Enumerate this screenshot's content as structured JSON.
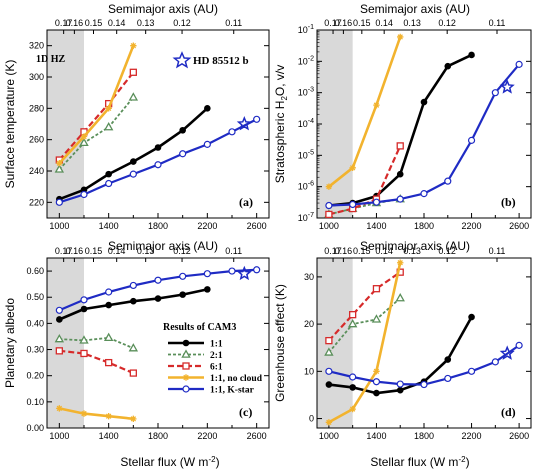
{
  "figure": {
    "top_axis_label": "Semimajor axis (AU)",
    "bottom_axis_label_main": "Stellar flux (W m",
    "bottom_axis_label_sup": "-2",
    "bottom_axis_label_end": ")"
  },
  "colors": {
    "r1": "#000000",
    "r2": "#5a8f5a",
    "r6": "#d62a2a",
    "nocloud": "#f2b32e",
    "kstar": "#1f2bc4",
    "hz": "#d9d9d9"
  },
  "legend": {
    "title": "Results of CAM3",
    "entries": [
      {
        "key": "r1",
        "label": "1:1"
      },
      {
        "key": "r2",
        "label": "2:1"
      },
      {
        "key": "r6",
        "label": "6:1"
      },
      {
        "key": "nocloud",
        "label": "1:1, no cloud"
      },
      {
        "key": "kstar",
        "label": "1:1, K-star"
      }
    ]
  },
  "annotations": {
    "hz_label": "1D HZ",
    "planet_label": "HD 85512 b"
  },
  "chart_data": [
    {
      "type": "line",
      "panel_label": "(a)",
      "ylabel": "Surface temperature (K)",
      "xlim": [
        900,
        2700
      ],
      "ylim": [
        210,
        330
      ],
      "yscale": "linear",
      "yticks": [
        220,
        240,
        260,
        280,
        300,
        320
      ],
      "ytick_labels": [
        "220",
        "240",
        "260",
        "280",
        "300",
        "320"
      ],
      "xticks": [
        1000,
        1400,
        1800,
        2200,
        2600
      ],
      "top_ticks": [
        {
          "label": "0.17",
          "x": 1035
        },
        {
          "label": "0.16",
          "x": 1122
        },
        {
          "label": "0.15",
          "x": 1277
        },
        {
          "label": "0.14",
          "x": 1465
        },
        {
          "label": "0.13",
          "x": 1700
        },
        {
          "label": "0.12",
          "x": 1995
        },
        {
          "label": "0.11",
          "x": 2414
        }
      ],
      "hz": [
        1000,
        1200
      ],
      "star": {
        "x": 2500,
        "y": 270
      },
      "series": [
        {
          "key": "r1",
          "x": [
            1000,
            1200,
            1400,
            1600,
            1800,
            2000,
            2200
          ],
          "y": [
            222,
            228,
            238,
            246,
            255,
            266,
            280
          ]
        },
        {
          "key": "r2",
          "x": [
            1000,
            1200,
            1400,
            1600
          ],
          "y": [
            241,
            258,
            268,
            287
          ]
        },
        {
          "key": "r6",
          "x": [
            1000,
            1200,
            1400,
            1600
          ],
          "y": [
            247,
            265,
            283,
            303
          ]
        },
        {
          "key": "nocloud",
          "x": [
            1000,
            1200,
            1400,
            1600
          ],
          "y": [
            245,
            262,
            280,
            320
          ]
        },
        {
          "key": "kstar",
          "x": [
            1000,
            1200,
            1400,
            1600,
            1800,
            2000,
            2200,
            2400,
            2600
          ],
          "y": [
            220,
            225,
            232,
            238,
            244,
            251,
            257,
            265,
            273
          ]
        }
      ]
    },
    {
      "type": "line",
      "panel_label": "(b)",
      "ylabel": "Stratospheric H2O, v/v",
      "xlim": [
        900,
        2700
      ],
      "ylim": [
        1e-07,
        0.1
      ],
      "yscale": "log",
      "yticks": [
        1e-07,
        1e-06,
        1e-05,
        0.0001,
        0.001,
        0.01,
        0.1
      ],
      "ytick_labels": [
        "10^-7",
        "10^-6",
        "10^-5",
        "10^-4",
        "10^-3",
        "10^-2",
        "10^-1"
      ],
      "xticks": [
        1000,
        1400,
        1800,
        2200,
        2600
      ],
      "top_ticks": [
        {
          "label": "0.17",
          "x": 1035
        },
        {
          "label": "0.16",
          "x": 1122
        },
        {
          "label": "0.15",
          "x": 1277
        },
        {
          "label": "0.14",
          "x": 1465
        },
        {
          "label": "0.13",
          "x": 1700
        },
        {
          "label": "0.12",
          "x": 1995
        },
        {
          "label": "0.11",
          "x": 2414
        }
      ],
      "hz": [
        1000,
        1200
      ],
      "star": {
        "x": 2500,
        "y": 0.0015
      },
      "series": [
        {
          "key": "r1",
          "x": [
            1000,
            1200,
            1400,
            1600,
            1800,
            2000,
            2200
          ],
          "y": [
            2.5e-07,
            3e-07,
            5e-07,
            2.5e-06,
            0.0005,
            0.007,
            0.016
          ]
        },
        {
          "key": "r2",
          "x": [
            1000,
            1200,
            1400,
            1600
          ],
          "y": [
            1.3e-07,
            2e-07,
            3e-07,
            4e-07
          ]
        },
        {
          "key": "r6",
          "x": [
            1000,
            1200,
            1400,
            1600
          ],
          "y": [
            1.3e-07,
            2e-07,
            4e-07,
            2e-05
          ]
        },
        {
          "key": "nocloud",
          "x": [
            1000,
            1200,
            1400,
            1600
          ],
          "y": [
            1e-06,
            4e-06,
            0.0004,
            0.06
          ]
        },
        {
          "key": "kstar",
          "x": [
            1000,
            1200,
            1400,
            1600,
            1800,
            2000,
            2200,
            2400,
            2600
          ],
          "y": [
            2.5e-07,
            2.7e-07,
            3.2e-07,
            4e-07,
            6e-07,
            1.5e-06,
            3e-05,
            0.001,
            0.008
          ]
        }
      ]
    },
    {
      "type": "line",
      "panel_label": "(c)",
      "ylabel": "Planetary albedo",
      "xlim": [
        900,
        2700
      ],
      "ylim": [
        0.0,
        0.65
      ],
      "yscale": "linear",
      "yticks": [
        0.0,
        0.1,
        0.2,
        0.3,
        0.4,
        0.5,
        0.6
      ],
      "ytick_labels": [
        "0.00",
        "0.10",
        "0.20",
        "0.30",
        "0.40",
        "0.50",
        "0.60"
      ],
      "xticks": [
        1000,
        1400,
        1800,
        2200,
        2600
      ],
      "top_ticks": [
        {
          "label": "0.17",
          "x": 1035
        },
        {
          "label": "0.16",
          "x": 1122
        },
        {
          "label": "0.15",
          "x": 1277
        },
        {
          "label": "0.14",
          "x": 1465
        },
        {
          "label": "0.13",
          "x": 1700
        },
        {
          "label": "0.12",
          "x": 1995
        },
        {
          "label": "0.11",
          "x": 2414
        }
      ],
      "hz": [
        1000,
        1200
      ],
      "star": {
        "x": 2500,
        "y": 0.59
      },
      "series": [
        {
          "key": "r1",
          "x": [
            1000,
            1200,
            1400,
            1600,
            1800,
            2000,
            2200
          ],
          "y": [
            0.415,
            0.455,
            0.47,
            0.485,
            0.495,
            0.51,
            0.53
          ]
        },
        {
          "key": "r2",
          "x": [
            1000,
            1200,
            1400,
            1600
          ],
          "y": [
            0.34,
            0.335,
            0.345,
            0.305
          ]
        },
        {
          "key": "r6",
          "x": [
            1000,
            1200,
            1400,
            1600
          ],
          "y": [
            0.295,
            0.285,
            0.25,
            0.21
          ]
        },
        {
          "key": "nocloud",
          "x": [
            1000,
            1200,
            1400,
            1600
          ],
          "y": [
            0.075,
            0.055,
            0.045,
            0.035
          ]
        },
        {
          "key": "kstar",
          "x": [
            1000,
            1200,
            1400,
            1600,
            1800,
            2000,
            2200,
            2400,
            2600
          ],
          "y": [
            0.45,
            0.49,
            0.52,
            0.545,
            0.565,
            0.58,
            0.59,
            0.6,
            0.605
          ]
        }
      ]
    },
    {
      "type": "line",
      "panel_label": "(d)",
      "ylabel": "Greenhouse effect (K)",
      "xlim": [
        900,
        2700
      ],
      "ylim": [
        -2,
        34
      ],
      "yscale": "linear",
      "yticks": [
        0,
        10,
        20,
        30
      ],
      "ytick_labels": [
        "0",
        "10",
        "20",
        "30"
      ],
      "xticks": [
        1000,
        1400,
        1800,
        2200,
        2600
      ],
      "top_ticks": [
        {
          "label": "0.17",
          "x": 1035
        },
        {
          "label": "0.16",
          "x": 1122
        },
        {
          "label": "0.15",
          "x": 1277
        },
        {
          "label": "0.14",
          "x": 1465
        },
        {
          "label": "0.13",
          "x": 1700
        },
        {
          "label": "0.12",
          "x": 1995
        },
        {
          "label": "0.11",
          "x": 2414
        }
      ],
      "hz": [
        1000,
        1200
      ],
      "star": {
        "x": 2500,
        "y": 13.8
      },
      "series": [
        {
          "key": "r1",
          "x": [
            1000,
            1200,
            1400,
            1600,
            1800,
            2000,
            2200
          ],
          "y": [
            7.2,
            6.6,
            5.4,
            6,
            7.8,
            12.5,
            21.5
          ]
        },
        {
          "key": "r2",
          "x": [
            1000,
            1200,
            1400,
            1600
          ],
          "y": [
            14,
            20,
            21,
            25.5
          ]
        },
        {
          "key": "r6",
          "x": [
            1000,
            1200,
            1400,
            1600
          ],
          "y": [
            16.5,
            22,
            27.5,
            31
          ]
        },
        {
          "key": "nocloud",
          "x": [
            1000,
            1200,
            1400,
            1600
          ],
          "y": [
            -0.8,
            2,
            10,
            33
          ]
        },
        {
          "key": "kstar",
          "x": [
            1000,
            1200,
            1400,
            1600,
            1800,
            2000,
            2200,
            2400,
            2600
          ],
          "y": [
            10,
            8.8,
            7.8,
            7.3,
            7.2,
            8.5,
            10,
            12,
            15.5
          ]
        }
      ]
    }
  ]
}
